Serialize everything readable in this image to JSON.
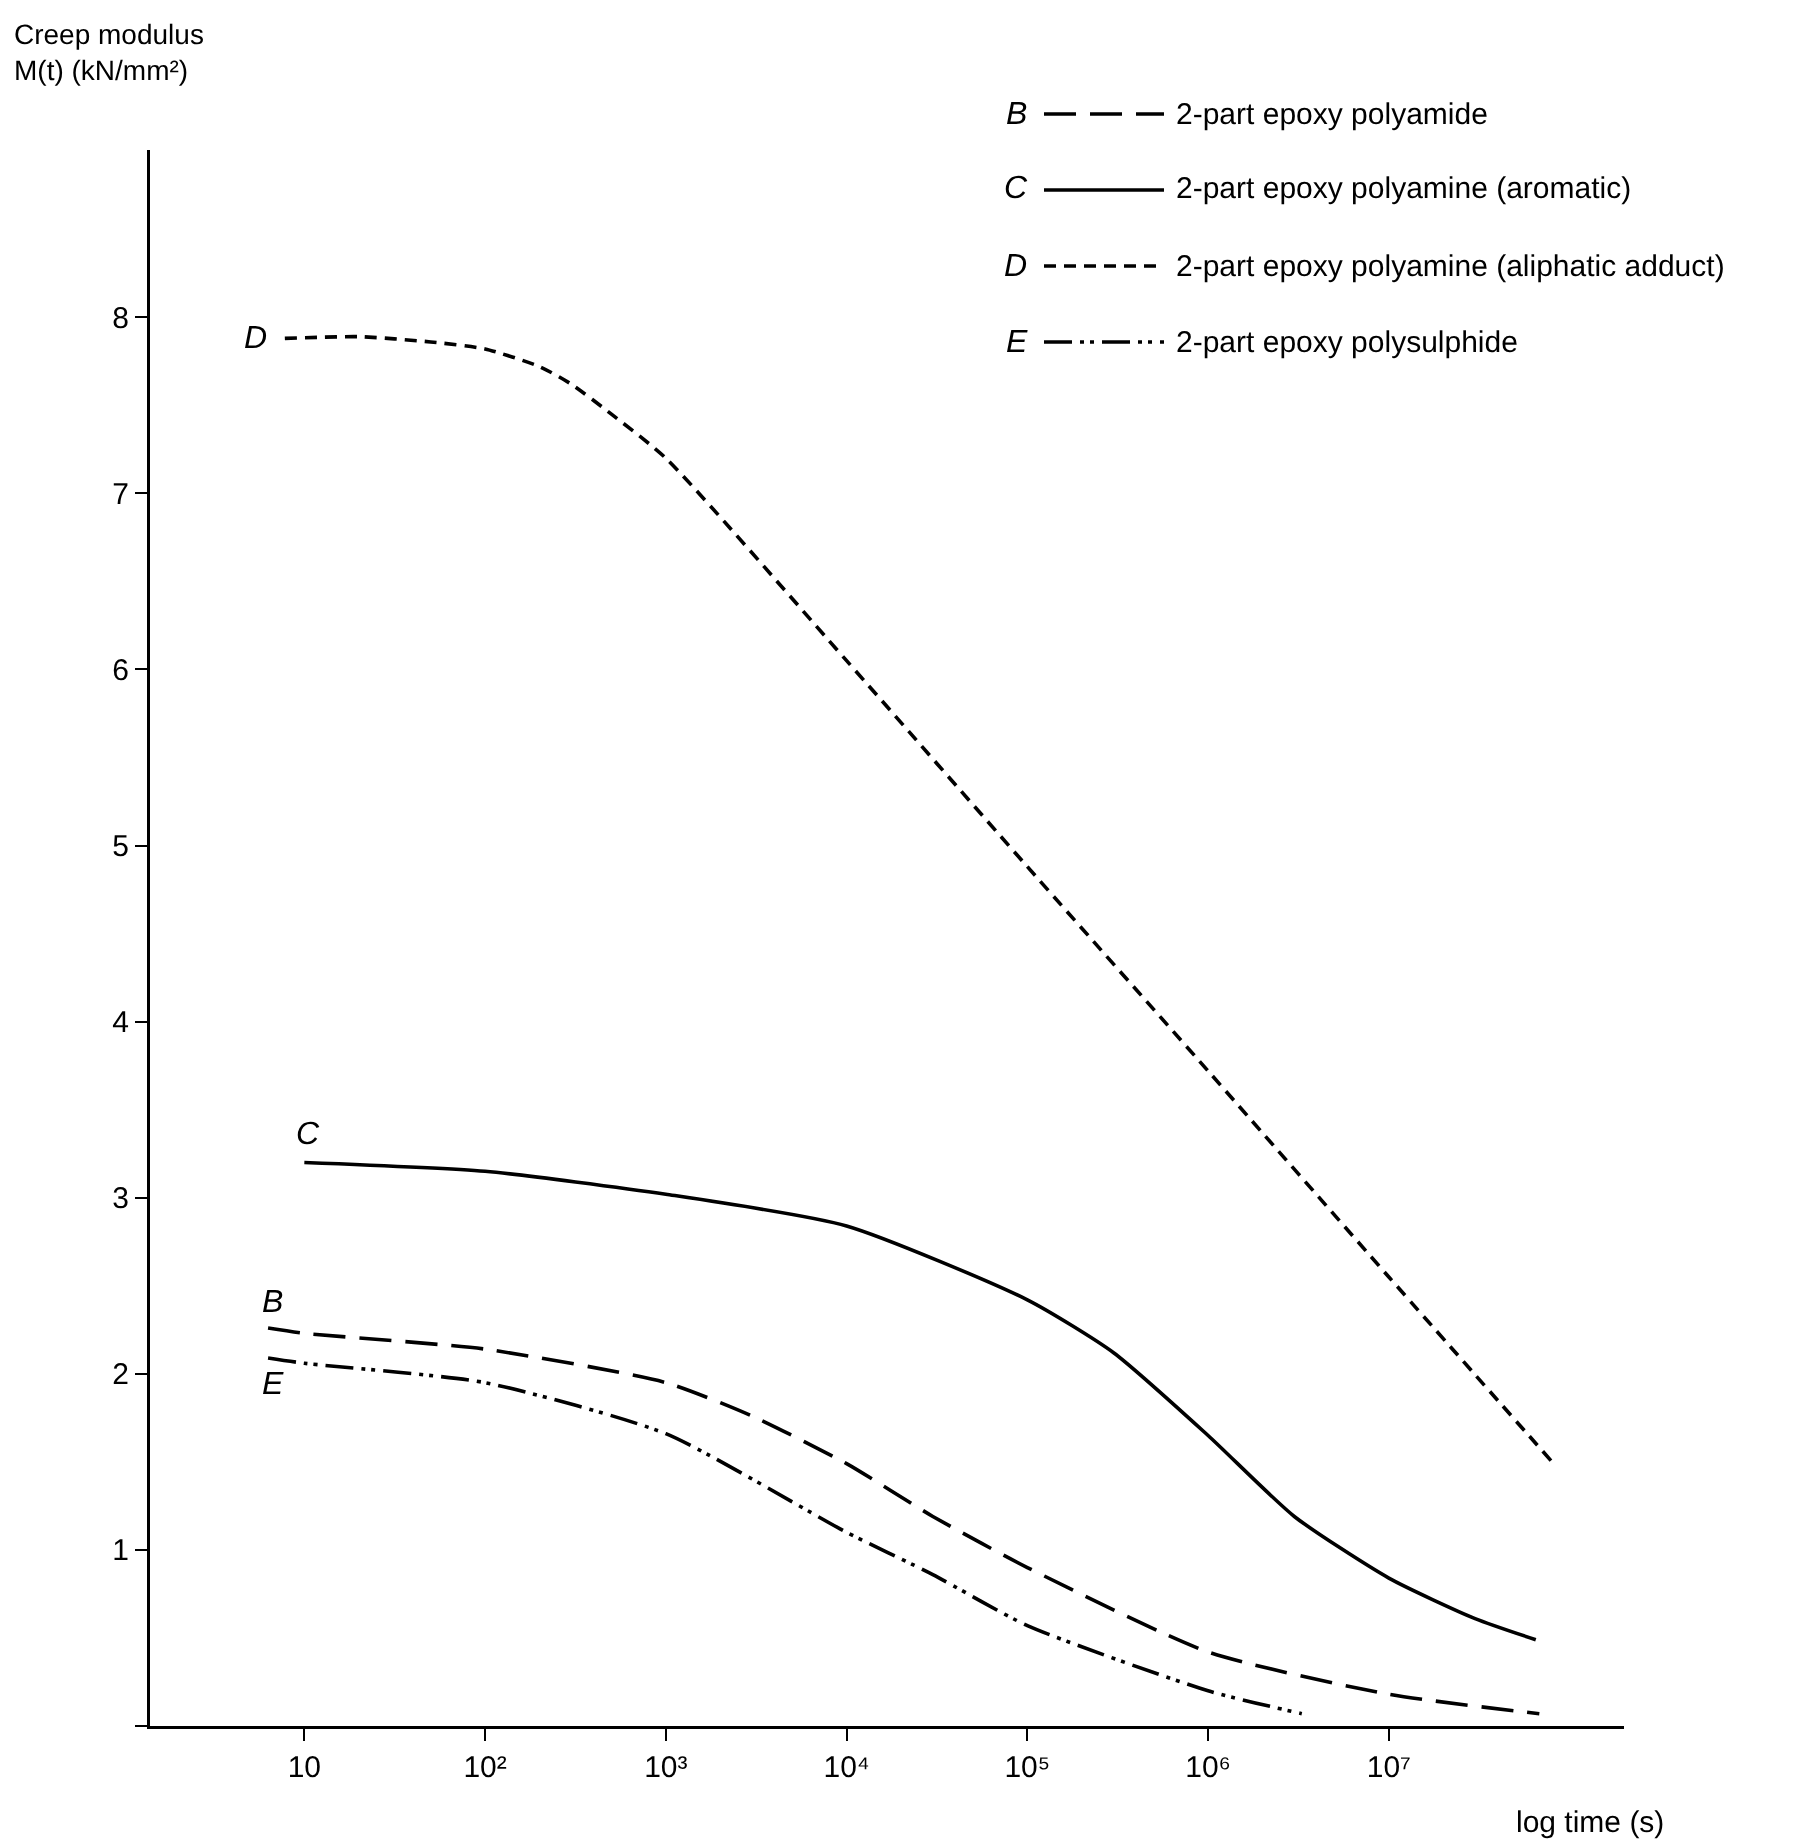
{
  "chart_data": {
    "type": "line",
    "ylabel": "Creep modulus\nM(t) (kN/mm²)",
    "xlabel": "log time (s)",
    "log": "x",
    "xlim": [
      1.4,
      200000000.0
    ],
    "ylim": [
      0,
      8.95
    ],
    "xticks": [
      10,
      {
        "value": 100,
        "label": "10²"
      },
      {
        "value": 1000,
        "label": "10³"
      },
      {
        "value": 10000,
        "label": "10⁴"
      },
      {
        "value": 100000,
        "label": "10⁵"
      },
      {
        "value": 1000000,
        "label": "10⁶"
      },
      {
        "value": 10000000,
        "label": "10⁷"
      }
    ],
    "yticks": [
      {
        "value": 0,
        "label": null
      },
      1,
      2,
      3,
      4,
      5,
      6,
      7,
      8
    ],
    "grid": false,
    "legend": "top right",
    "marker": "none",
    "series": [
      {
        "name": "2-part epoxy polyamide",
        "color": "#000000",
        "line_style": "long_dashed",
        "x": [
          6.3,
          10,
          100,
          1000,
          3000,
          10000,
          30000,
          100000,
          1000000,
          10000000,
          68000000
        ],
        "values": [
          2.26,
          2.23,
          2.14,
          1.95,
          1.76,
          1.49,
          1.19,
          0.9,
          0.42,
          0.18,
          0.07
        ]
      },
      {
        "name": "2-part epoxy polyamine (aromatic)",
        "color": "#000000",
        "line_style": "solid",
        "x": [
          10,
          100,
          1000,
          10000,
          100000,
          300000,
          1000000,
          3000000,
          10000000,
          30000000,
          65000000
        ],
        "values": [
          3.2,
          3.15,
          3.02,
          2.84,
          2.42,
          2.12,
          1.65,
          1.19,
          0.84,
          0.61,
          0.49
        ]
      },
      {
        "name": "2-part epoxy polyamine (aliphatic adduct)",
        "color": "#000000",
        "line_style": "dashed",
        "x": [
          7.8,
          20,
          50,
          100,
          200,
          300,
          500,
          1000,
          10000,
          100000,
          1000000,
          10000000,
          80000000
        ],
        "values": [
          7.88,
          7.89,
          7.86,
          7.82,
          7.72,
          7.62,
          7.45,
          7.2,
          6.05,
          4.88,
          3.72,
          2.55,
          1.5
        ]
      },
      {
        "name": "2-part epoxy polysulphide",
        "color": "#000000",
        "line_style": "dash_dot_dot",
        "x": [
          6.3,
          10,
          100,
          1000,
          10000,
          30000,
          100000,
          1000000,
          3300000
        ],
        "values": [
          2.09,
          2.06,
          1.95,
          1.66,
          1.1,
          0.86,
          0.57,
          0.2,
          0.07
        ]
      }
    ],
    "annotations": [
      {
        "text": "B",
        "x": 6.3,
        "y": 2.26
      },
      {
        "text": "C",
        "x": 10,
        "y": 3.2
      },
      {
        "text": "D",
        "x": 7.8,
        "y": 7.88
      },
      {
        "text": "E",
        "x": 6.3,
        "y": 2.09
      }
    ]
  }
}
